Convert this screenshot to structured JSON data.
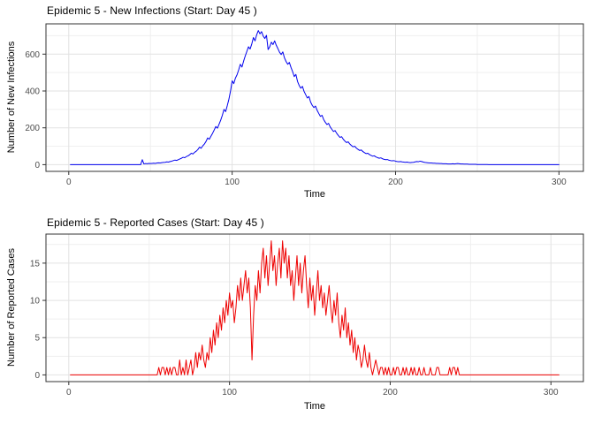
{
  "chart_data": [
    {
      "type": "line",
      "series_name": "new-infections",
      "title": "Epidemic 5 - New Infections (Start: Day 45 )",
      "xlabel": "Time",
      "ylabel": "Number of New Infections",
      "line_color": "#0000EE",
      "x_ticks": [
        0,
        100,
        200,
        300
      ],
      "x_minor_ticks": [
        50,
        150,
        250
      ],
      "y_ticks": [
        0,
        200,
        400,
        600
      ],
      "y_minor_ticks": [
        100,
        300,
        500,
        700
      ],
      "x_range_shown": [
        0,
        300
      ],
      "y_range_shown": [
        0,
        728
      ],
      "grid": true,
      "legend": "none",
      "x_start": 1,
      "x_step": 1,
      "values": [
        0,
        0,
        0,
        0,
        0,
        0,
        0,
        0,
        0,
        0,
        0,
        0,
        0,
        0,
        0,
        0,
        0,
        0,
        0,
        0,
        0,
        0,
        0,
        0,
        0,
        0,
        0,
        0,
        0,
        0,
        0,
        0,
        0,
        0,
        0,
        0,
        0,
        0,
        0,
        0,
        0,
        0,
        0,
        0,
        27,
        4,
        6,
        5,
        7,
        6,
        7,
        8,
        7,
        9,
        10,
        9,
        11,
        12,
        13,
        15,
        14,
        17,
        19,
        22,
        25,
        23,
        27,
        31,
        35,
        40,
        38,
        44,
        48,
        54,
        62,
        58,
        67,
        73,
        82,
        95,
        89,
        102,
        112,
        126,
        145,
        138,
        154,
        170,
        188,
        207,
        198,
        220,
        242,
        268,
        300,
        288,
        320,
        355,
        400,
        455,
        440,
        470,
        488,
        515,
        545,
        530,
        562,
        590,
        615,
        640,
        628,
        655,
        690,
        672,
        705,
        728,
        710,
        722,
        698,
        685,
        702,
        625,
        640,
        665,
        652,
        672,
        648,
        630,
        610,
        598,
        612,
        580,
        560,
        545,
        555,
        528,
        505,
        478,
        490,
        452,
        430,
        415,
        425,
        398,
        380,
        362,
        370,
        340,
        322,
        310,
        318,
        295,
        278,
        262,
        268,
        245,
        230,
        218,
        224,
        205,
        192,
        180,
        185,
        170,
        158,
        148,
        152,
        138,
        128,
        120,
        124,
        112,
        104,
        97,
        100,
        90,
        83,
        77,
        80,
        71,
        65,
        60,
        62,
        55,
        50,
        46,
        48,
        42,
        38,
        35,
        37,
        32,
        29,
        27,
        28,
        24,
        22,
        21,
        22,
        19,
        17,
        16,
        17,
        15,
        14,
        13,
        14,
        12,
        11,
        12,
        13,
        15,
        17,
        16,
        19,
        17,
        14,
        12,
        11,
        10,
        9,
        9,
        8,
        8,
        7,
        7,
        6,
        6,
        5,
        5,
        5,
        4,
        4,
        4,
        5,
        4,
        5,
        6,
        5,
        4,
        4,
        3,
        3,
        3,
        2,
        2,
        2,
        2,
        2,
        1,
        1,
        1,
        1,
        1,
        1,
        1,
        0,
        0,
        0,
        0,
        0,
        0,
        0,
        0,
        0,
        0,
        0,
        0,
        0,
        0,
        0,
        0,
        0,
        0,
        0,
        0,
        0,
        0,
        0,
        0,
        0,
        0,
        0,
        0,
        0,
        0,
        0,
        0,
        0,
        0,
        0,
        0,
        0,
        0,
        0,
        0,
        0,
        0,
        0,
        0
      ]
    },
    {
      "type": "line",
      "series_name": "reported-cases",
      "title": "Epidemic 5 - Reported Cases (Start: Day 45 )",
      "xlabel": "Time",
      "ylabel": "Number of Reported Cases",
      "line_color": "#EE0000",
      "x_ticks": [
        0,
        100,
        200,
        300
      ],
      "x_minor_ticks": [
        50,
        150,
        250
      ],
      "y_ticks": [
        0,
        5,
        10,
        15
      ],
      "y_minor_ticks": [
        2.5,
        7.5,
        12.5,
        17.5
      ],
      "x_range_shown": [
        0,
        305
      ],
      "y_range_shown": [
        0,
        18
      ],
      "grid": true,
      "legend": "none",
      "x_start": 1,
      "x_step": 1,
      "values": [
        0,
        0,
        0,
        0,
        0,
        0,
        0,
        0,
        0,
        0,
        0,
        0,
        0,
        0,
        0,
        0,
        0,
        0,
        0,
        0,
        0,
        0,
        0,
        0,
        0,
        0,
        0,
        0,
        0,
        0,
        0,
        0,
        0,
        0,
        0,
        0,
        0,
        0,
        0,
        0,
        0,
        0,
        0,
        0,
        0,
        0,
        0,
        0,
        0,
        0,
        0,
        0,
        0,
        0,
        0,
        1,
        0,
        1,
        1,
        0,
        1,
        0,
        1,
        0,
        1,
        1,
        0,
        0,
        2,
        0,
        1,
        0,
        2,
        0,
        1,
        2,
        0,
        1,
        3,
        1,
        3,
        2,
        4,
        2,
        1,
        3,
        2,
        5,
        3,
        6,
        4,
        7,
        5,
        8,
        6,
        9,
        7,
        10,
        8,
        11,
        9,
        10,
        7,
        9,
        12,
        10,
        13,
        10,
        12,
        14,
        11,
        13,
        9,
        2,
        8,
        12,
        10,
        14,
        11,
        15,
        17,
        13,
        16,
        12,
        15,
        18,
        14,
        16,
        12,
        15,
        17,
        13,
        18,
        15,
        17,
        13,
        16,
        12,
        14,
        10,
        13,
        16,
        12,
        15,
        11,
        14,
        16,
        12,
        9,
        13,
        10,
        12,
        8,
        11,
        14,
        10,
        12,
        9,
        11,
        8,
        10,
        12,
        9,
        7,
        10,
        8,
        11,
        7,
        5,
        8,
        6,
        9,
        5,
        7,
        4,
        6,
        3,
        5,
        2,
        4,
        3,
        1,
        2,
        4,
        2,
        1,
        3,
        1,
        0,
        1,
        2,
        1,
        0,
        1,
        1,
        0,
        1,
        0,
        1,
        0,
        0,
        1,
        0,
        1,
        1,
        0,
        0,
        1,
        0,
        1,
        0,
        0,
        1,
        0,
        1,
        0,
        0,
        1,
        0,
        0,
        1,
        0,
        0,
        0,
        1,
        0,
        0,
        0,
        1,
        1,
        0,
        0,
        0,
        0,
        0,
        0,
        1,
        0,
        1,
        1,
        0,
        1,
        0,
        0,
        0,
        0,
        0,
        0,
        0,
        0,
        0,
        0,
        0,
        0,
        0,
        0,
        0,
        0,
        0,
        0,
        0,
        0,
        0,
        0,
        0,
        0,
        0,
        0,
        0,
        0,
        0,
        0,
        0,
        0,
        0,
        0,
        0,
        0,
        0,
        0,
        0,
        0,
        0,
        0,
        0,
        0,
        0,
        0,
        0,
        0,
        0,
        0,
        0,
        0,
        0,
        0,
        0,
        0,
        0,
        0,
        0,
        0,
        0,
        0,
        0
      ]
    }
  ],
  "style": {
    "panel_border_color": "#333333",
    "grid_major_color": "#E2E2E2",
    "grid_minor_color": "#EFEFEF",
    "tick_color": "#333333",
    "tick_label_color": "#4D4D4D",
    "background_color": "#FFFFFF"
  }
}
